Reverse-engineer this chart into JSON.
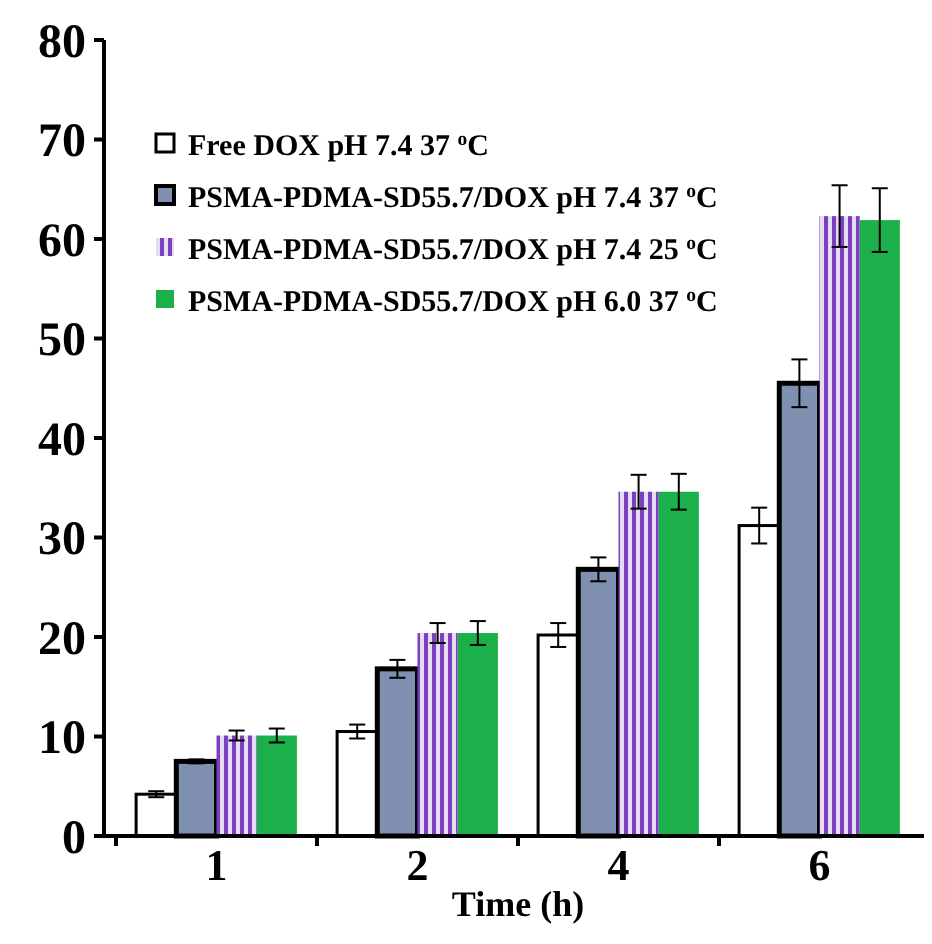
{
  "chart_data": {
    "type": "bar",
    "xlabel": "Time (h)",
    "categories": [
      "1",
      "2",
      "4",
      "6"
    ],
    "ylim": [
      0,
      80
    ],
    "yticks": [
      0,
      10,
      20,
      30,
      40,
      50,
      60,
      70,
      80
    ],
    "grid": false,
    "legend": "top left",
    "series": [
      {
        "name": "Free DOX pH 7.4 37 $^{o}$C",
        "color": "#ffffff",
        "values": [
          4.2,
          10.5,
          20.2,
          31.2
        ],
        "errors": [
          0.3,
          0.7,
          1.2,
          1.8
        ]
      },
      {
        "name": "PSMA-PDMA-SD55.7/DOX pH 7.4 37 $^{o}$C",
        "color": "#8090b0",
        "values": [
          7.5,
          16.8,
          26.8,
          45.5
        ],
        "errors": [
          0.2,
          0.9,
          1.2,
          2.4
        ]
      },
      {
        "name": "PSMA-PDMA-SD55.7/DOX pH 7.4 25 $^{o}$C",
        "color": "#7b3fbf",
        "values": [
          10.1,
          20.4,
          34.6,
          62.3
        ],
        "errors": [
          0.5,
          1.0,
          1.7,
          3.1
        ]
      },
      {
        "name": "PSMA-PDMA-SD55.7/DOX pH 6.0 37 $^{o}$C",
        "color": "#1bb04a",
        "values": [
          10.1,
          20.4,
          34.6,
          61.9
        ],
        "errors": [
          0.7,
          1.2,
          1.8,
          3.2
        ]
      }
    ]
  }
}
